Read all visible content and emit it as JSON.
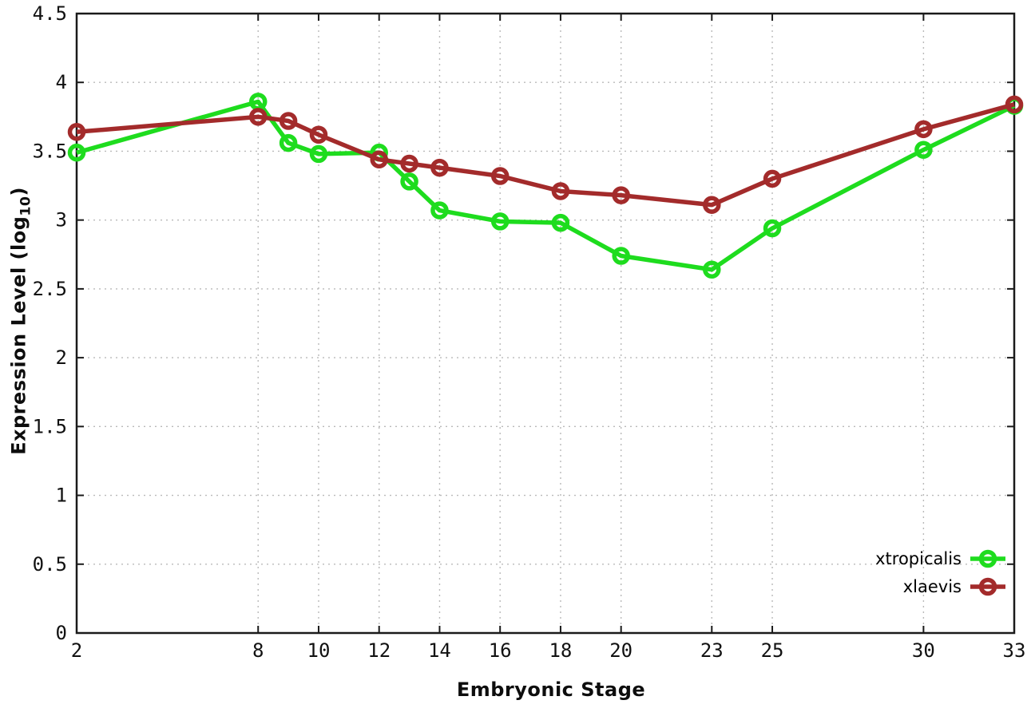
{
  "figure": {
    "background": "#ffffff",
    "border_color": "#1a1a1a",
    "grid_color": "#b9b9b9",
    "tick_label_color": "#111111"
  },
  "chart_data": {
    "type": "line",
    "title": "",
    "xlabel": "Embryonic Stage",
    "ylabel": "Expression Level (log10)",
    "ylabel_parts": {
      "main": "Expression Level (log",
      "sub": "10",
      "close": ")"
    },
    "xlim": [
      2,
      33
    ],
    "ylim": [
      0,
      4.5
    ],
    "grid": true,
    "legend_position": "bottom-right",
    "x": [
      2,
      8,
      9,
      10,
      12,
      13,
      14,
      16,
      18,
      20,
      23,
      25,
      30,
      33
    ],
    "x_tick_labels": [
      "2",
      "8",
      "10",
      "12",
      "14",
      "16",
      "18",
      "20",
      "23",
      "25",
      "30",
      "33"
    ],
    "x_tick_values": [
      2,
      8,
      10,
      12,
      14,
      16,
      18,
      20,
      23,
      25,
      30,
      33
    ],
    "y_tick_labels": [
      "0",
      "0.5",
      "1",
      "1.5",
      "2",
      "2.5",
      "3",
      "3.5",
      "4",
      "4.5"
    ],
    "y_tick_values": [
      0,
      0.5,
      1,
      1.5,
      2,
      2.5,
      3,
      3.5,
      4,
      4.5
    ],
    "series": [
      {
        "name": "xtropicalis",
        "color": "#1edc1e",
        "marker": "open-circle",
        "values": [
          3.49,
          3.86,
          3.56,
          3.48,
          3.49,
          3.28,
          3.07,
          2.99,
          2.98,
          2.74,
          2.64,
          2.94,
          3.51,
          3.83
        ]
      },
      {
        "name": "xlaevis",
        "color": "#a32b2b",
        "marker": "open-circle",
        "values": [
          3.64,
          3.75,
          3.72,
          3.62,
          3.44,
          3.41,
          3.38,
          3.32,
          3.21,
          3.18,
          3.11,
          3.3,
          3.66,
          3.84
        ]
      }
    ]
  }
}
